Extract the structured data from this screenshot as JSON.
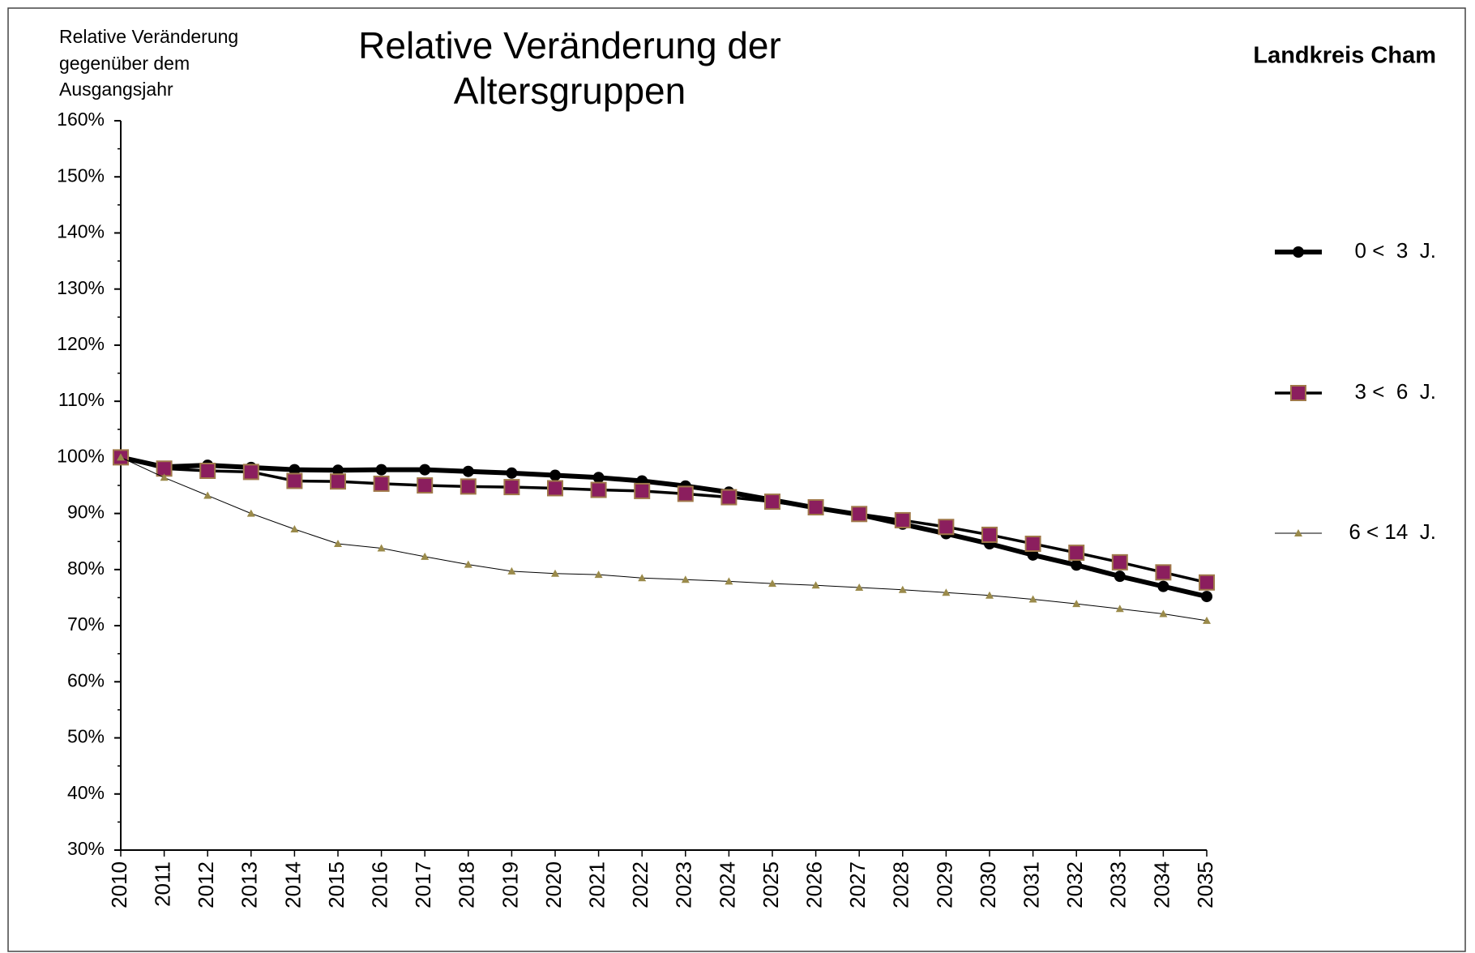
{
  "chart_data": {
    "type": "line",
    "title": [
      "Relative Veränderung der",
      "Altersgruppen"
    ],
    "subtitle": "Landkreis Cham",
    "ylabel": [
      "Relative Veränderung",
      "gegenüber dem",
      "Ausgangsjahr"
    ],
    "categories": [
      "2010",
      "2011",
      "2012",
      "2013",
      "2014",
      "2015",
      "2016",
      "2017",
      "2018",
      "2019",
      "2020",
      "2021",
      "2022",
      "2023",
      "2024",
      "2025",
      "2026",
      "2027",
      "2028",
      "2029",
      "2030",
      "2031",
      "2032",
      "2033",
      "2034",
      "2035"
    ],
    "ylim": [
      30,
      160
    ],
    "yticks": [
      {
        "value": 30,
        "label": "30%"
      },
      {
        "value": 40,
        "label": "40%"
      },
      {
        "value": 50,
        "label": "50%"
      },
      {
        "value": 60,
        "label": "60%"
      },
      {
        "value": 70,
        "label": "70%"
      },
      {
        "value": 80,
        "label": "80%"
      },
      {
        "value": 90,
        "label": "90%"
      },
      {
        "value": 100,
        "label": "100%"
      },
      {
        "value": 110,
        "label": "110%"
      },
      {
        "value": 120,
        "label": "120%"
      },
      {
        "value": 130,
        "label": "130%"
      },
      {
        "value": 140,
        "label": "140%"
      },
      {
        "value": 150,
        "label": "150%"
      },
      {
        "value": 160,
        "label": "160%"
      }
    ],
    "grid": false,
    "legend": "right",
    "series": [
      {
        "name": "0 <  3  J.",
        "color": "#000000",
        "marker": "circle",
        "line_width": 6,
        "values": [
          100,
          98.3,
          98.6,
          98.2,
          97.8,
          97.7,
          97.8,
          97.8,
          97.5,
          97.2,
          96.8,
          96.4,
          95.8,
          94.9,
          93.8,
          92.4,
          91.0,
          89.8,
          88.1,
          86.4,
          84.6,
          82.6,
          80.8,
          78.8,
          77.0,
          75.2
        ]
      },
      {
        "name": "3 <  6  J.",
        "color": "#8b1e5e",
        "marker": "square",
        "line_width": 3.5,
        "values": [
          100,
          98.0,
          97.6,
          97.4,
          95.8,
          95.7,
          95.3,
          95.0,
          94.8,
          94.7,
          94.5,
          94.2,
          94.0,
          93.5,
          92.9,
          92.1,
          91.1,
          89.9,
          88.8,
          87.6,
          86.2,
          84.6,
          83.0,
          81.3,
          79.5,
          77.7
        ]
      },
      {
        "name": "6 < 14  J.",
        "color": "#9a8a4a",
        "marker": "triangle",
        "line_width": 1,
        "values": [
          100,
          96.4,
          93.2,
          90.0,
          87.2,
          84.6,
          83.8,
          82.3,
          80.9,
          79.7,
          79.3,
          79.1,
          78.5,
          78.2,
          77.9,
          77.5,
          77.2,
          76.8,
          76.4,
          75.9,
          75.4,
          74.7,
          73.9,
          73.0,
          72.1,
          70.9
        ]
      }
    ]
  }
}
